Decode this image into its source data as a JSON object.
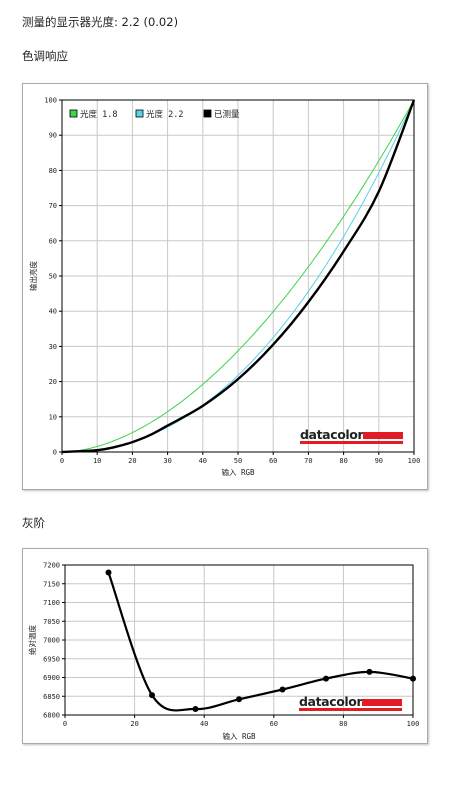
{
  "header": {
    "gamma_label": "测量的显示器光度:",
    "gamma_value": "2.2 (0.02)",
    "section_tone": "色调响应",
    "section_gray": "灰阶"
  },
  "logo": {
    "text": "datacolor",
    "bar_color": "#e31b23"
  },
  "chart_data": [
    {
      "type": "line",
      "xlabel": "输入 RGB",
      "ylabel": "输出亮度",
      "xlim": [
        0,
        100
      ],
      "ylim": [
        0,
        100
      ],
      "xticks": [
        0,
        10,
        20,
        30,
        40,
        50,
        60,
        70,
        80,
        90,
        100
      ],
      "yticks": [
        0,
        10,
        20,
        30,
        40,
        50,
        60,
        70,
        80,
        90,
        100
      ],
      "grid": true,
      "legend_position": "top-left",
      "series": [
        {
          "name": "光度 1.8",
          "color": "#3fd44a",
          "width": 1,
          "gamma": 1.8,
          "x": [
            0,
            10,
            20,
            30,
            40,
            50,
            60,
            70,
            80,
            90,
            100
          ],
          "y": [
            0,
            1.6,
            5.5,
            11.5,
            19.2,
            28.7,
            39.9,
            52.6,
            66.9,
            82.7,
            100
          ]
        },
        {
          "name": "光度 2.2",
          "color": "#5ad2e6",
          "width": 1,
          "gamma": 2.2,
          "x": [
            0,
            10,
            20,
            30,
            40,
            50,
            60,
            70,
            80,
            90,
            100
          ],
          "y": [
            0,
            0.6,
            2.9,
            7.1,
            13.3,
            21.8,
            32.5,
            45.6,
            61.2,
            79.3,
            100
          ]
        },
        {
          "name": "已测量",
          "color": "#000000",
          "width": 2.4,
          "x": [
            0,
            10,
            15,
            20,
            25,
            30,
            40,
            50,
            60,
            70,
            80,
            90,
            100
          ],
          "y": [
            0,
            0.5,
            1.4,
            2.8,
            4.8,
            7.5,
            13.1,
            20.7,
            30.5,
            42.6,
            57.0,
            74.0,
            100
          ]
        }
      ]
    },
    {
      "type": "line",
      "xlabel": "输入 RGB",
      "ylabel": "绝对温度",
      "xlim": [
        0,
        100
      ],
      "ylim": [
        6800,
        7200
      ],
      "xticks": [
        0,
        20,
        40,
        60,
        80,
        100
      ],
      "yticks": [
        6800,
        6850,
        6900,
        6950,
        7000,
        7050,
        7100,
        7150,
        7200
      ],
      "grid": true,
      "series": [
        {
          "color": "#000000",
          "width": 2.2,
          "x": [
            12.5,
            25,
            37.5,
            50,
            62.5,
            75,
            87.5,
            100
          ],
          "y": [
            7180,
            6853,
            6816,
            6842,
            6868,
            6897,
            6915,
            6897
          ]
        }
      ]
    }
  ]
}
